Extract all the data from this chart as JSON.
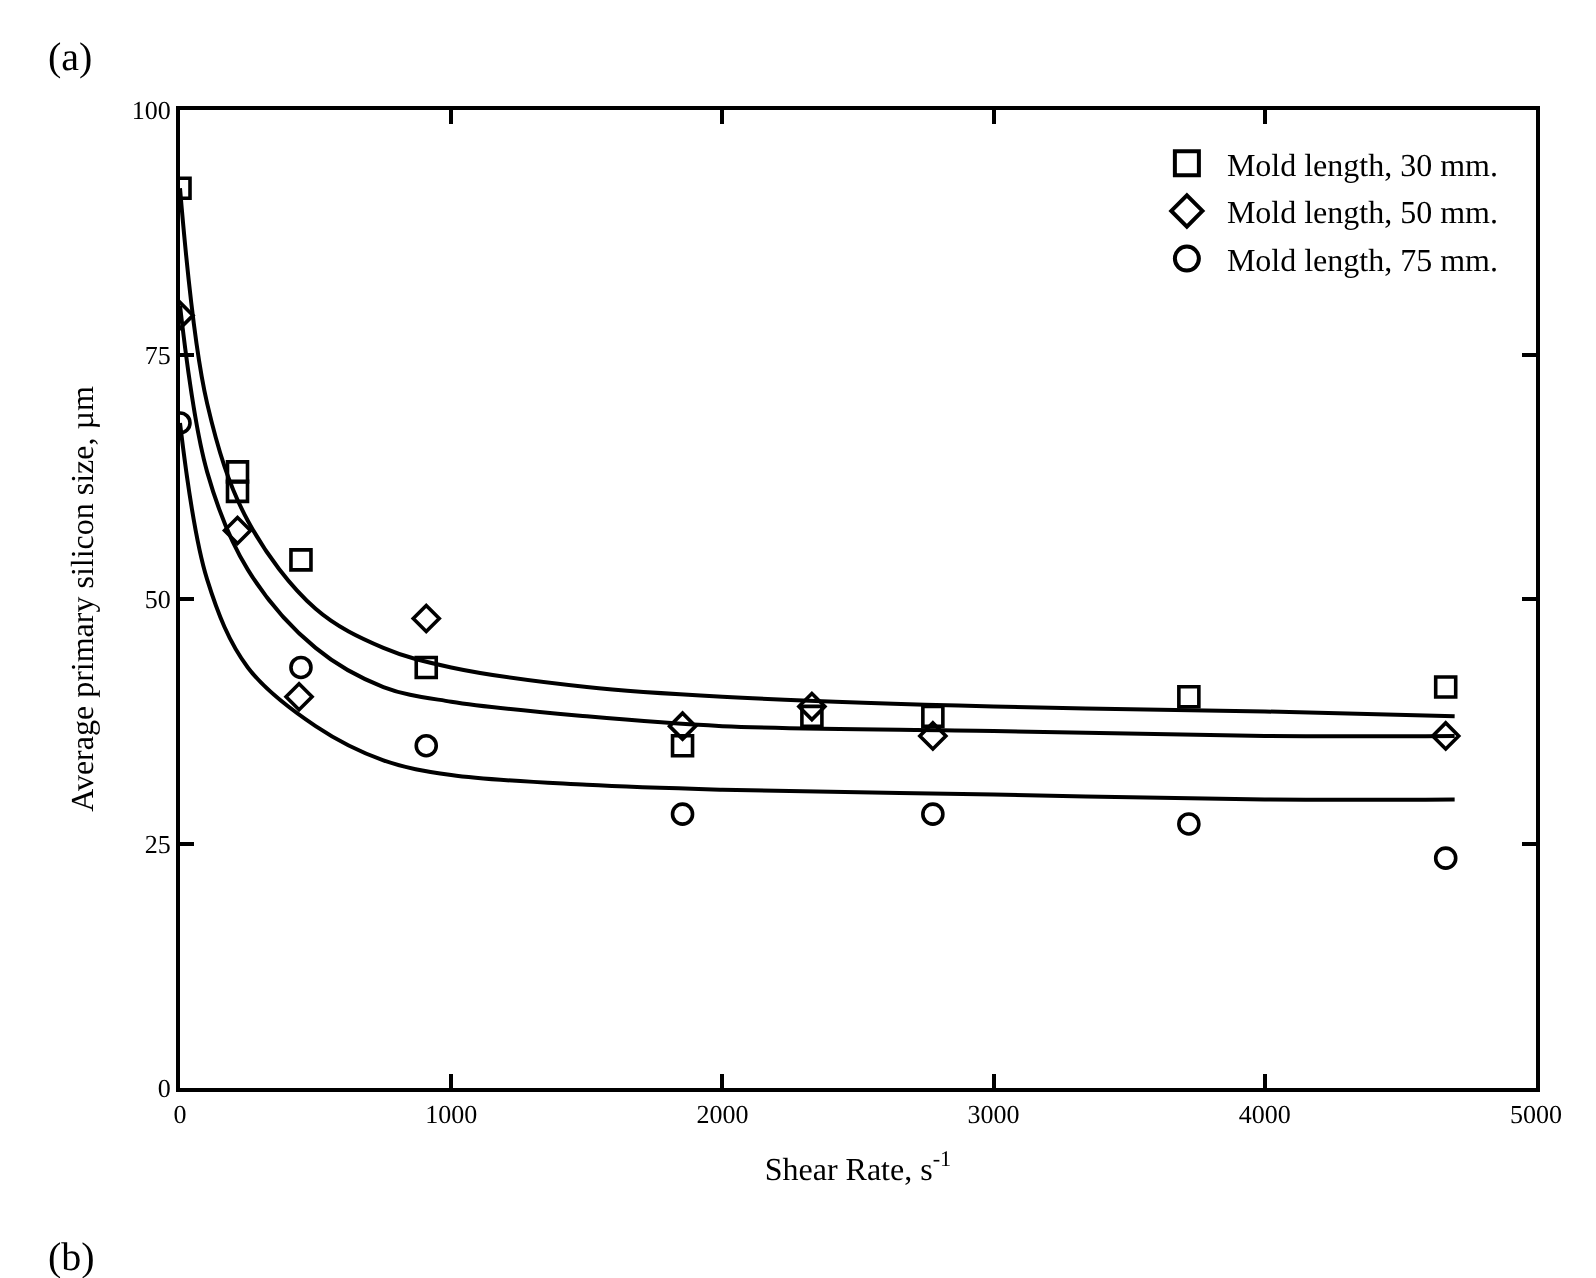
{
  "chart_data": {
    "type": "scatter",
    "xlabel": "Shear Rate, s$^{-1}$",
    "ylabel": "Average primary silicon size, µm",
    "annotations": [
      "(a)",
      "(b)"
    ],
    "xlim": [
      0,
      5000
    ],
    "xticks": [
      0,
      1000,
      2000,
      3000,
      4000,
      5000
    ],
    "ylim": [
      0,
      100
    ],
    "yticks": [
      0,
      25,
      50,
      75,
      100
    ],
    "legend": "top right",
    "series": [
      {
        "name": "Mold length, 30 mm.",
        "color": "#000000",
        "marker": "square",
        "x": [
          0,
          212,
          212,
          446,
          908,
          1853,
          2330,
          2776,
          3720,
          4667
        ],
        "values": [
          92,
          63,
          61,
          54,
          43,
          35,
          38,
          38,
          40,
          41
        ]
      },
      {
        "name": "Mold length, 50 mm.",
        "color": "#000000",
        "marker": "diamond",
        "x": [
          0,
          212,
          439,
          908,
          1853,
          2330,
          2776,
          4667
        ],
        "values": [
          79,
          57,
          40,
          48,
          37,
          39,
          36,
          36
        ]
      },
      {
        "name": "Mold length, 75 mm.",
        "color": "#000000",
        "marker": "circle",
        "x": [
          0,
          446,
          908,
          1853,
          2776,
          3720,
          4667
        ],
        "values": [
          68,
          43,
          35,
          28,
          28,
          27,
          23.5
        ]
      },
      {
        "type": "line",
        "color": "#000000",
        "marker": "none",
        "line_style": "solid",
        "x": [
          0,
          100,
          250,
          500,
          750,
          1000,
          1500,
          2000,
          3000,
          4000,
          4700
        ],
        "values": [
          92,
          70,
          58,
          49,
          45,
          43,
          41,
          40,
          39,
          38.5,
          38
        ]
      },
      {
        "type": "line",
        "color": "#000000",
        "marker": "none",
        "line_style": "solid",
        "x": [
          0,
          100,
          250,
          500,
          750,
          1000,
          1500,
          2000,
          3000,
          4000,
          4700
        ],
        "values": [
          80,
          63,
          53,
          45,
          41,
          39.5,
          38,
          37,
          36.5,
          36,
          36
        ]
      },
      {
        "type": "line",
        "color": "#000000",
        "marker": "none",
        "line_style": "solid",
        "x": [
          0,
          100,
          250,
          500,
          750,
          1000,
          1500,
          2000,
          3000,
          4000,
          4700
        ],
        "values": [
          68,
          52,
          43,
          37,
          33.5,
          32,
          31,
          30.5,
          30,
          29.5,
          29.5
        ]
      }
    ]
  }
}
